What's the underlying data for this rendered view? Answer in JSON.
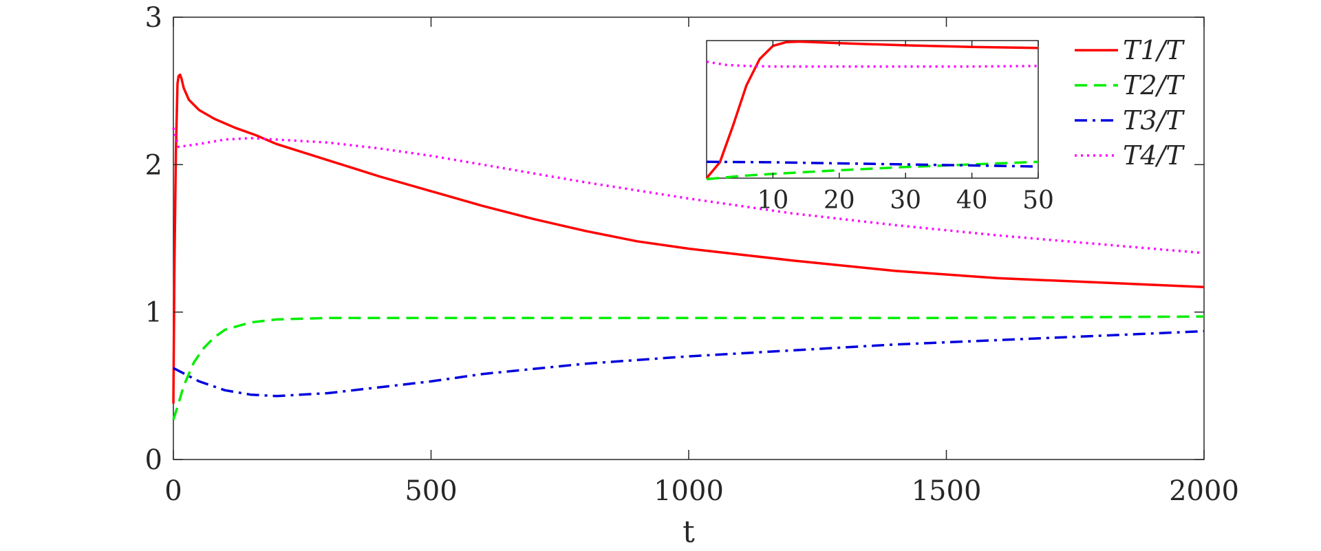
{
  "chart_data": {
    "type": "line",
    "xlabel": "t",
    "ylabel": "",
    "xlim": [
      0,
      2000
    ],
    "ylim": [
      0,
      3
    ],
    "x_ticks": [
      "0",
      "500",
      "1000",
      "1500",
      "2000"
    ],
    "y_ticks": [
      "0",
      "1",
      "2",
      "3"
    ],
    "grid": false,
    "legend_position": "top-right",
    "series": [
      {
        "name": "T1/T",
        "color": "#ff0000",
        "style": "solid",
        "x": [
          0,
          2,
          5,
          8,
          10,
          13,
          16,
          20,
          30,
          50,
          80,
          120,
          160,
          200,
          300,
          400,
          500,
          600,
          700,
          800,
          900,
          1000,
          1200,
          1400,
          1600,
          1800,
          2000
        ],
        "y": [
          0.38,
          1.3,
          2.1,
          2.55,
          2.6,
          2.61,
          2.58,
          2.52,
          2.44,
          2.37,
          2.31,
          2.25,
          2.2,
          2.14,
          2.03,
          1.92,
          1.82,
          1.72,
          1.63,
          1.55,
          1.48,
          1.43,
          1.35,
          1.28,
          1.23,
          1.2,
          1.17
        ]
      },
      {
        "name": "T2/T",
        "color": "#00ee00",
        "style": "dashed",
        "x": [
          0,
          10,
          20,
          40,
          60,
          80,
          100,
          150,
          200,
          300,
          500,
          1000,
          1500,
          2000
        ],
        "y": [
          0.27,
          0.38,
          0.5,
          0.66,
          0.76,
          0.83,
          0.88,
          0.93,
          0.95,
          0.96,
          0.96,
          0.96,
          0.96,
          0.97
        ]
      },
      {
        "name": "T3/T",
        "color": "#0000dd",
        "style": "dashdot",
        "x": [
          0,
          50,
          100,
          150,
          200,
          300,
          400,
          500,
          600,
          800,
          1000,
          1200,
          1400,
          1600,
          1800,
          2000
        ],
        "y": [
          0.62,
          0.53,
          0.47,
          0.44,
          0.43,
          0.45,
          0.49,
          0.53,
          0.58,
          0.65,
          0.7,
          0.74,
          0.78,
          0.81,
          0.84,
          0.87
        ]
      },
      {
        "name": "T4/T",
        "color": "#ff00ff",
        "style": "dotted",
        "x": [
          0,
          10,
          50,
          100,
          150,
          200,
          300,
          400,
          500,
          600,
          800,
          1000,
          1200,
          1400,
          1600,
          1800,
          2000
        ],
        "y": [
          2.25,
          2.12,
          2.14,
          2.17,
          2.18,
          2.17,
          2.15,
          2.11,
          2.06,
          2.0,
          1.88,
          1.77,
          1.67,
          1.59,
          1.52,
          1.46,
          1.4
        ]
      }
    ],
    "inset": {
      "xlim": [
        0,
        50
      ],
      "ylim": [
        0.3,
        2.9
      ],
      "x_ticks": [
        "10",
        "20",
        "30",
        "40",
        "50"
      ],
      "series": [
        {
          "name": "T1/T",
          "color": "#ff0000",
          "style": "solid",
          "x": [
            0,
            2,
            4,
            6,
            8,
            10,
            12,
            14,
            16,
            20,
            30,
            40,
            50
          ],
          "y": [
            0.3,
            0.6,
            1.3,
            2.05,
            2.55,
            2.8,
            2.87,
            2.88,
            2.87,
            2.85,
            2.81,
            2.78,
            2.76
          ]
        },
        {
          "name": "T2/T",
          "color": "#00ee00",
          "style": "dashed",
          "x": [
            0,
            5,
            10,
            20,
            30,
            40,
            50
          ],
          "y": [
            0.28,
            0.34,
            0.38,
            0.45,
            0.51,
            0.56,
            0.61
          ]
        },
        {
          "name": "T3/T",
          "color": "#0000dd",
          "style": "dashdot",
          "x": [
            0,
            10,
            20,
            30,
            40,
            50
          ],
          "y": [
            0.61,
            0.6,
            0.58,
            0.56,
            0.54,
            0.52
          ]
        },
        {
          "name": "T4/T",
          "color": "#ff00ff",
          "style": "dotted",
          "x": [
            0,
            3,
            6,
            10,
            20,
            30,
            40,
            50
          ],
          "y": [
            2.5,
            2.44,
            2.42,
            2.41,
            2.41,
            2.41,
            2.41,
            2.42
          ]
        }
      ]
    }
  }
}
